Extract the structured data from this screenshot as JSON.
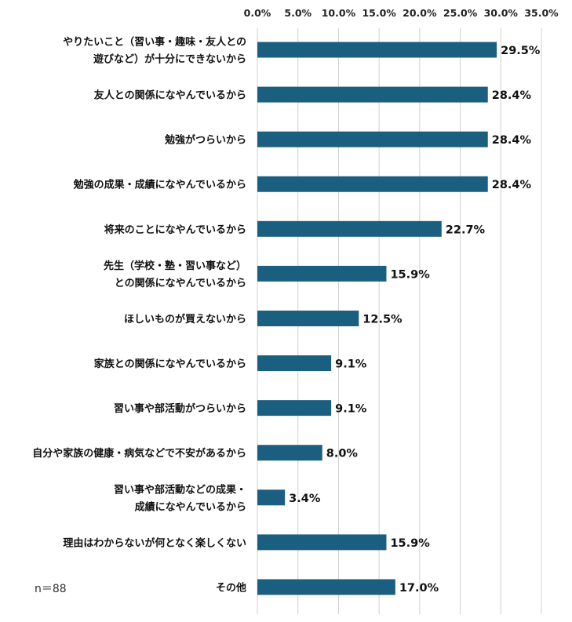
{
  "chart_data": {
    "type": "bar",
    "orientation": "horizontal",
    "categories": [
      [
        "やりたいこと（習い事・趣味・友人との",
        "遊びなど）が十分にできないから"
      ],
      [
        "友人との関係になやんでいるから"
      ],
      [
        "勉強がつらいから"
      ],
      [
        "勉強の成果・成績になやんでいるから"
      ],
      [
        "将来のことになやんでいるから"
      ],
      [
        "先生（学校・塾・習い事など）",
        "との関係になやんでいるから"
      ],
      [
        "ほしいものが買えないから"
      ],
      [
        "家族との関係になやんでいるから"
      ],
      [
        "習い事や部活動がつらいから"
      ],
      [
        "自分や家族の健康・病気などで不安があるから"
      ],
      [
        "習い事や部活動などの成果・",
        "成績になやんでいるから"
      ],
      [
        "理由はわからないが何となく楽しくない"
      ],
      [
        "その他"
      ]
    ],
    "values": [
      29.5,
      28.4,
      28.4,
      28.4,
      22.7,
      15.9,
      12.5,
      9.1,
      9.1,
      8.0,
      3.4,
      15.9,
      17.0
    ],
    "value_labels": [
      "29.5%",
      "28.4%",
      "28.4%",
      "28.4%",
      "22.7%",
      "15.9%",
      "12.5%",
      "9.1%",
      "9.1%",
      "8.0%",
      "3.4%",
      "15.9%",
      "17.0%"
    ],
    "x_ticks": [
      "0.0%",
      "5.0%",
      "10.0%",
      "15.0%",
      "20.0%",
      "25.0%",
      "30.0%",
      "35.0%"
    ],
    "xlim": [
      0,
      35
    ],
    "x_axis_position": "top",
    "grid": true,
    "bar_color": "#1a5e80",
    "grid_color": "#d0d0d0"
  },
  "note": "n＝88"
}
